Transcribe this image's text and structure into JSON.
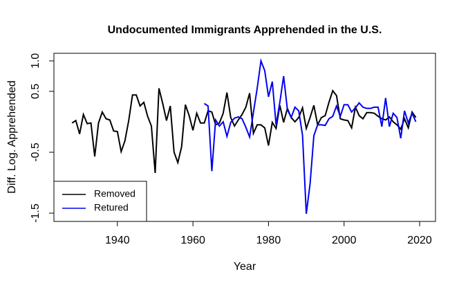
{
  "chart_data": {
    "type": "line",
    "title": "Undocumented Immigrants Apprehended in the U.S.",
    "x_label": "Year",
    "y_label": "Diff. Log. Apprehended",
    "xlim": [
      1923.2,
      2024.2
    ],
    "xticks": [
      1940,
      1960,
      1980,
      2000,
      2020
    ],
    "ylim": [
      -1.636,
      1.125
    ],
    "yticks": [
      {
        "value": 1.0,
        "label": "1.0"
      },
      0.5,
      -0.5,
      -1.5
    ],
    "legend": "bottomleft",
    "series": [
      {
        "name": "Removed",
        "color": "#000000",
        "x": [
          1928,
          1929,
          1930,
          1931,
          1932,
          1933,
          1934,
          1935,
          1936,
          1937,
          1938,
          1939,
          1940,
          1941,
          1942,
          1943,
          1944,
          1945,
          1946,
          1947,
          1948,
          1949,
          1950,
          1951,
          1952,
          1953,
          1954,
          1955,
          1956,
          1957,
          1958,
          1959,
          1960,
          1961,
          1962,
          1963,
          1964,
          1965,
          1966,
          1967,
          1968,
          1969,
          1970,
          1971,
          1972,
          1973,
          1974,
          1975,
          1976,
          1977,
          1978,
          1979,
          1980,
          1981,
          1982,
          1983,
          1984,
          1985,
          1986,
          1987,
          1988,
          1989,
          1990,
          1991,
          1992,
          1993,
          1994,
          1995,
          1996,
          1997,
          1998,
          1999,
          2000,
          2001,
          2002,
          2003,
          2004,
          2005,
          2006,
          2007,
          2008,
          2009,
          2010,
          2011,
          2012,
          2013,
          2014,
          2015,
          2016,
          2017,
          2018,
          2019
        ],
        "values": [
          -0.02,
          0.02,
          -0.2,
          0.12,
          -0.03,
          -0.02,
          -0.57,
          -0.02,
          0.16,
          0.05,
          0.03,
          -0.15,
          -0.16,
          -0.49,
          -0.31,
          0.02,
          0.44,
          0.44,
          0.26,
          0.32,
          0.09,
          -0.07,
          -0.84,
          0.55,
          0.3,
          0.02,
          0.26,
          -0.5,
          -0.67,
          -0.41,
          0.28,
          0.1,
          -0.14,
          0.14,
          -0.02,
          -0.02,
          0.18,
          0.16,
          -0.05,
          -0.02,
          0.14,
          0.48,
          0.07,
          -0.07,
          0.03,
          0.12,
          0.24,
          0.47,
          -0.19,
          -0.05,
          -0.05,
          -0.1,
          -0.39,
          -0.01,
          -0.11,
          0.27,
          -0.01,
          0.22,
          0.07,
          0,
          0.07,
          0.23,
          -0.11,
          0.07,
          0.27,
          -0.05,
          0.07,
          0.1,
          0.32,
          0.51,
          0.43,
          0.05,
          0.03,
          0.02,
          -0.1,
          0.24,
          0.1,
          0.05,
          0.15,
          0.15,
          0.14,
          0.09,
          0.05,
          0.03,
          0.08,
          0,
          -0.05,
          -0.12,
          0.05,
          -0.1,
          0.16,
          0.07
        ]
      },
      {
        "name": "Retured",
        "color": "#0000ee",
        "x": [
          1963,
          1964,
          1965,
          1966,
          1967,
          1968,
          1969,
          1970,
          1971,
          1972,
          1973,
          1974,
          1975,
          1976,
          1977,
          1978,
          1979,
          1980,
          1981,
          1982,
          1983,
          1984,
          1985,
          1986,
          1987,
          1988,
          1989,
          1990,
          1991,
          1992,
          1993,
          1994,
          1995,
          1996,
          1997,
          1998,
          1999,
          2000,
          2001,
          2002,
          2003,
          2004,
          2005,
          2006,
          2007,
          2008,
          2009,
          2010,
          2011,
          2012,
          2013,
          2014,
          2015,
          2016,
          2017,
          2018,
          2019
        ],
        "values": [
          0.3,
          0.26,
          -0.81,
          0.03,
          -0.07,
          0,
          -0.24,
          -0.01,
          0.06,
          0.08,
          0.05,
          -0.09,
          -0.25,
          0.15,
          0.55,
          1.0,
          0.84,
          0.41,
          0.66,
          -0.05,
          0.32,
          0.75,
          0.2,
          0.07,
          0.24,
          0.18,
          -0.22,
          -1.51,
          -1.02,
          -0.23,
          -0.05,
          -0.05,
          -0.06,
          0.05,
          0.09,
          0.26,
          0.09,
          0.28,
          0.28,
          0.16,
          0.23,
          0.31,
          0.24,
          0.22,
          0.22,
          0.24,
          0.24,
          -0.08,
          0.39,
          -0.08,
          0.14,
          0.07,
          -0.27,
          0.18,
          -0.02,
          0.14,
          0
        ]
      }
    ]
  }
}
